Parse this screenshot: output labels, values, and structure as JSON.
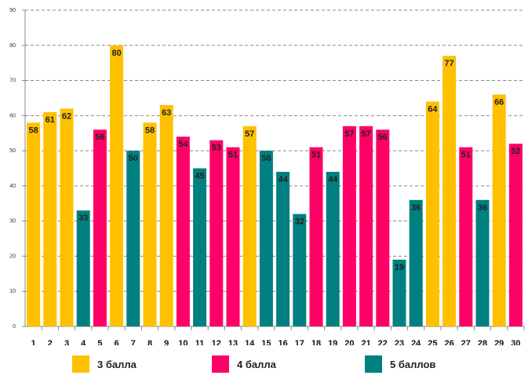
{
  "chart_data": {
    "type": "bar",
    "title": "",
    "xlabel": "",
    "ylabel": "",
    "ylim": [
      0,
      90
    ],
    "yticks": [
      "0",
      "10",
      "20",
      "30",
      "40",
      "50",
      "60",
      "70",
      "80",
      "90"
    ],
    "grid": true,
    "categories": [
      "1",
      "2",
      "3",
      "4",
      "5",
      "6",
      "7",
      "8",
      "9",
      "10",
      "11",
      "12",
      "13",
      "14",
      "15",
      "16",
      "17",
      "18",
      "19",
      "20",
      "21",
      "22",
      "23",
      "24",
      "25",
      "26",
      "27",
      "28",
      "29",
      "30"
    ],
    "values": [
      58,
      61,
      62,
      33,
      56,
      80,
      50,
      58,
      63,
      54,
      45,
      53,
      51,
      57,
      50,
      44,
      32,
      51,
      44,
      57,
      57,
      56,
      19,
      36,
      64,
      77,
      51,
      36,
      66,
      52
    ],
    "groups": [
      0,
      0,
      0,
      2,
      1,
      0,
      2,
      0,
      0,
      1,
      2,
      1,
      1,
      0,
      2,
      2,
      2,
      1,
      2,
      1,
      1,
      1,
      2,
      2,
      0,
      0,
      1,
      2,
      0,
      1
    ],
    "legend": [
      {
        "label": "3 балла",
        "color": "#FFC000"
      },
      {
        "label": "4 балла",
        "color": "#FF0066"
      },
      {
        "label": "5 баллов",
        "color": "#008080"
      }
    ],
    "legend_position": "bottom"
  }
}
